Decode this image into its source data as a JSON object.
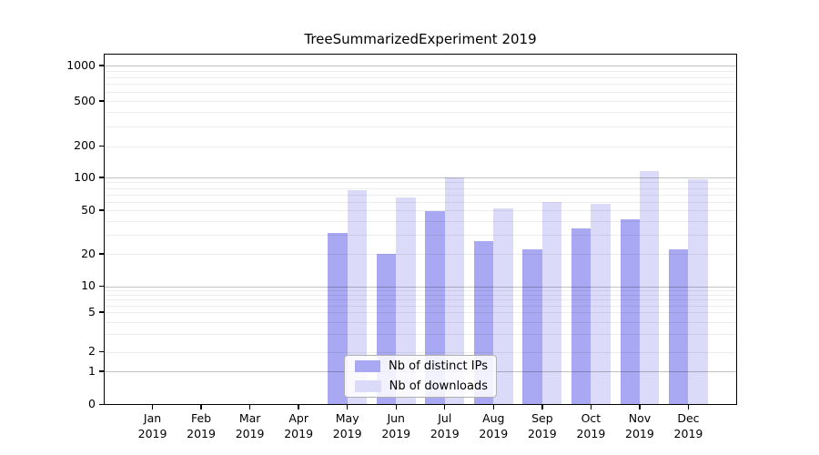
{
  "chart_data": {
    "type": "bar",
    "title": "TreeSummarizedExperiment 2019",
    "categories": [
      {
        "month": "Jan",
        "year": "2019"
      },
      {
        "month": "Feb",
        "year": "2019"
      },
      {
        "month": "Mar",
        "year": "2019"
      },
      {
        "month": "Apr",
        "year": "2019"
      },
      {
        "month": "May",
        "year": "2019"
      },
      {
        "month": "Jun",
        "year": "2019"
      },
      {
        "month": "Jul",
        "year": "2019"
      },
      {
        "month": "Aug",
        "year": "2019"
      },
      {
        "month": "Sep",
        "year": "2019"
      },
      {
        "month": "Oct",
        "year": "2019"
      },
      {
        "month": "Nov",
        "year": "2019"
      },
      {
        "month": "Dec",
        "year": "2019"
      }
    ],
    "series": [
      {
        "name": "Nb of distinct IPs",
        "color": "#a8a8f3",
        "values": [
          0,
          0,
          0,
          0,
          31,
          20,
          49,
          26,
          22,
          34,
          41,
          22
        ]
      },
      {
        "name": "Nb of downloads",
        "color": "#dbdbf9",
        "values": [
          0,
          0,
          0,
          0,
          76,
          66,
          100,
          52,
          59,
          57,
          115,
          97
        ]
      }
    ],
    "yscale": "symlog",
    "y_ticks": [
      0,
      1,
      2,
      5,
      10,
      20,
      50,
      100,
      200,
      500,
      1000
    ],
    "ylim": [
      0,
      1300
    ],
    "grid": true,
    "legend_position": "lower center"
  }
}
